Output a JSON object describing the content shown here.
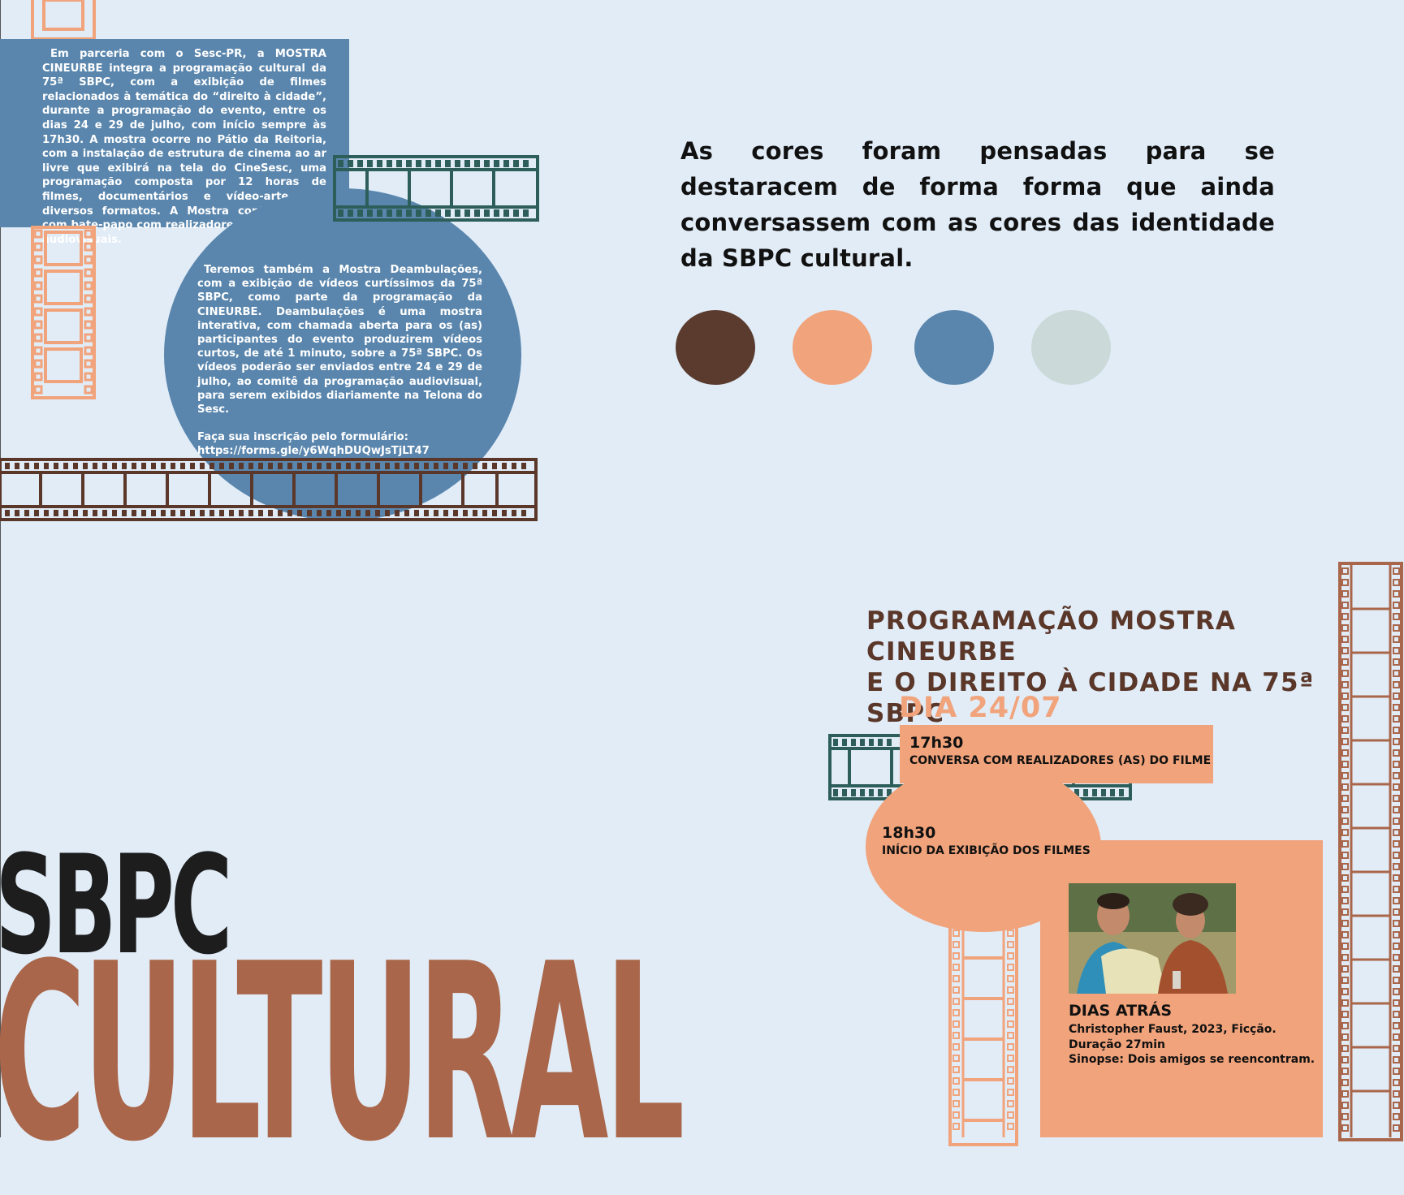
{
  "intro": {
    "text": "Em parceria com o Sesc-PR, a MOSTRA CINEURBE integra a programação cultural da 75ª SBPC, com a exibição de filmes relacionados à temática do “direito à cidade”, durante a programação do evento, entre os dias 24 e 29 de julho, com início sempre às 17h30. A mostra ocorre no Pátio da Reitoria, com a instalação de estrutura de cinema ao ar livre que exibirá na tela do CineSesc, uma programação composta por 12 horas de filmes, documentários e vídeo-arte, em diversos formatos. A Mostra contará ainda com bate-papo com realizadores(as) das obras audiovisuais."
  },
  "deambulacoes": {
    "text": "Teremos também a Mostra Deambulações, com a exibição de vídeos curtíssimos da 75ª SBPC, como parte da programação da CINEURBE. Deambulações é uma mostra interativa, com chamada aberta para os (as) participantes do evento produzirem vídeos curtos, de até 1 minuto, sobre a 75ª SBPC. Os vídeos poderão ser enviados entre 24 e 29 de julho, ao comitê da programação audiovisual, para serem exibidos diariamente na Telona do Sesc.",
    "form_label": "Faça sua inscrição pelo formulário:",
    "form_url": "https://forms.gle/y6WqhDUQwJsTjLT47"
  },
  "statement": "As cores foram pensadas para se destaracem de forma forma que ainda conversassem com as cores das identidade da SBPC cultural.",
  "palette": [
    "#5a3b2e",
    "#f1a37b",
    "#5a86ad",
    "#cbd9d8"
  ],
  "program": {
    "title_line1": "PROGRAMAÇÃO MOSTRA CINEURBE",
    "title_line2": "E O DIREITO À CIDADE NA 75ª SBPC",
    "day": "DIA 24/07",
    "items": [
      {
        "time": "17h30",
        "activity": "CONVERSA COM REALIZADORES (AS) DO FILME"
      },
      {
        "time": "18h30",
        "activity": "INÍCIO DA EXIBIÇÃO DOS FILMES"
      }
    ],
    "film": {
      "title": "DIAS ATRÁS",
      "credits": "Christopher Faust, 2023, Ficção.",
      "duration": "Duração 27min",
      "synopsis_label": "Sinopse:",
      "synopsis": "Dois amigos se reencontram."
    }
  },
  "logo": {
    "line1": "SBPC",
    "line2": "CULTURAL"
  },
  "colors": {
    "background": "#e1ecf7",
    "blue": "#5a86ad",
    "peach": "#f1a37b",
    "brown": "#5a3729",
    "teal": "#2e5e5a",
    "rust": "#a9664a"
  }
}
